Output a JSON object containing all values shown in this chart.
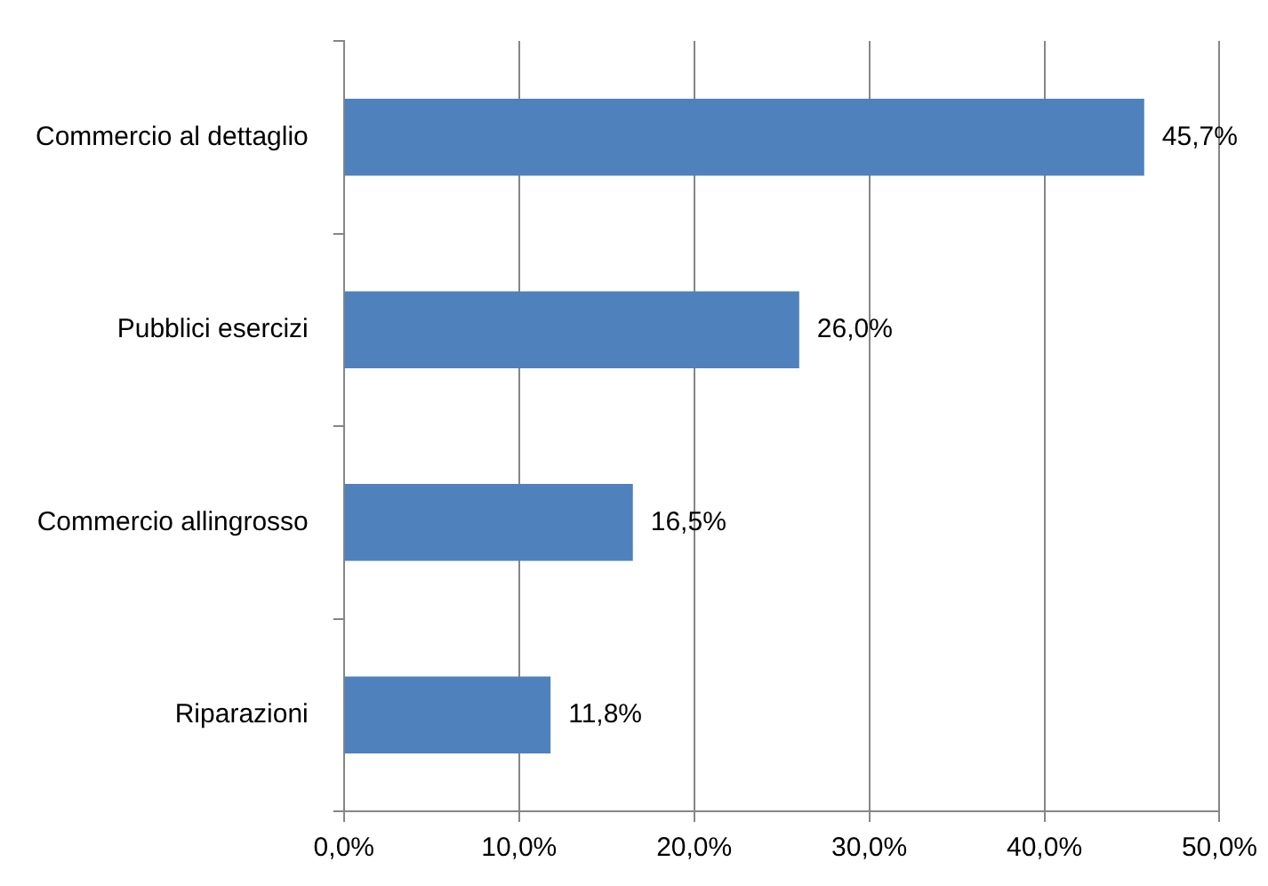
{
  "chart_data": {
    "type": "bar",
    "orientation": "horizontal",
    "categories": [
      "Commercio al dettaglio",
      "Pubblici esercizi",
      "Commercio allingrosso",
      "Riparazioni"
    ],
    "values": [
      45.7,
      26.0,
      16.5,
      11.8
    ],
    "value_labels": [
      "45,7%",
      "26,0%",
      "16,5%",
      "11,8%"
    ],
    "color": "#4f81bd",
    "xlim": [
      0,
      50
    ],
    "xticks": [
      {
        "value": 0,
        "label": "0,0%"
      },
      {
        "value": 10,
        "label": "10,0%"
      },
      {
        "value": 20,
        "label": "20,0%"
      },
      {
        "value": 30,
        "label": "30,0%"
      },
      {
        "value": 40,
        "label": "40,0%"
      },
      {
        "value": 50,
        "label": "50,0%"
      }
    ],
    "grid": "x",
    "legend": false
  }
}
